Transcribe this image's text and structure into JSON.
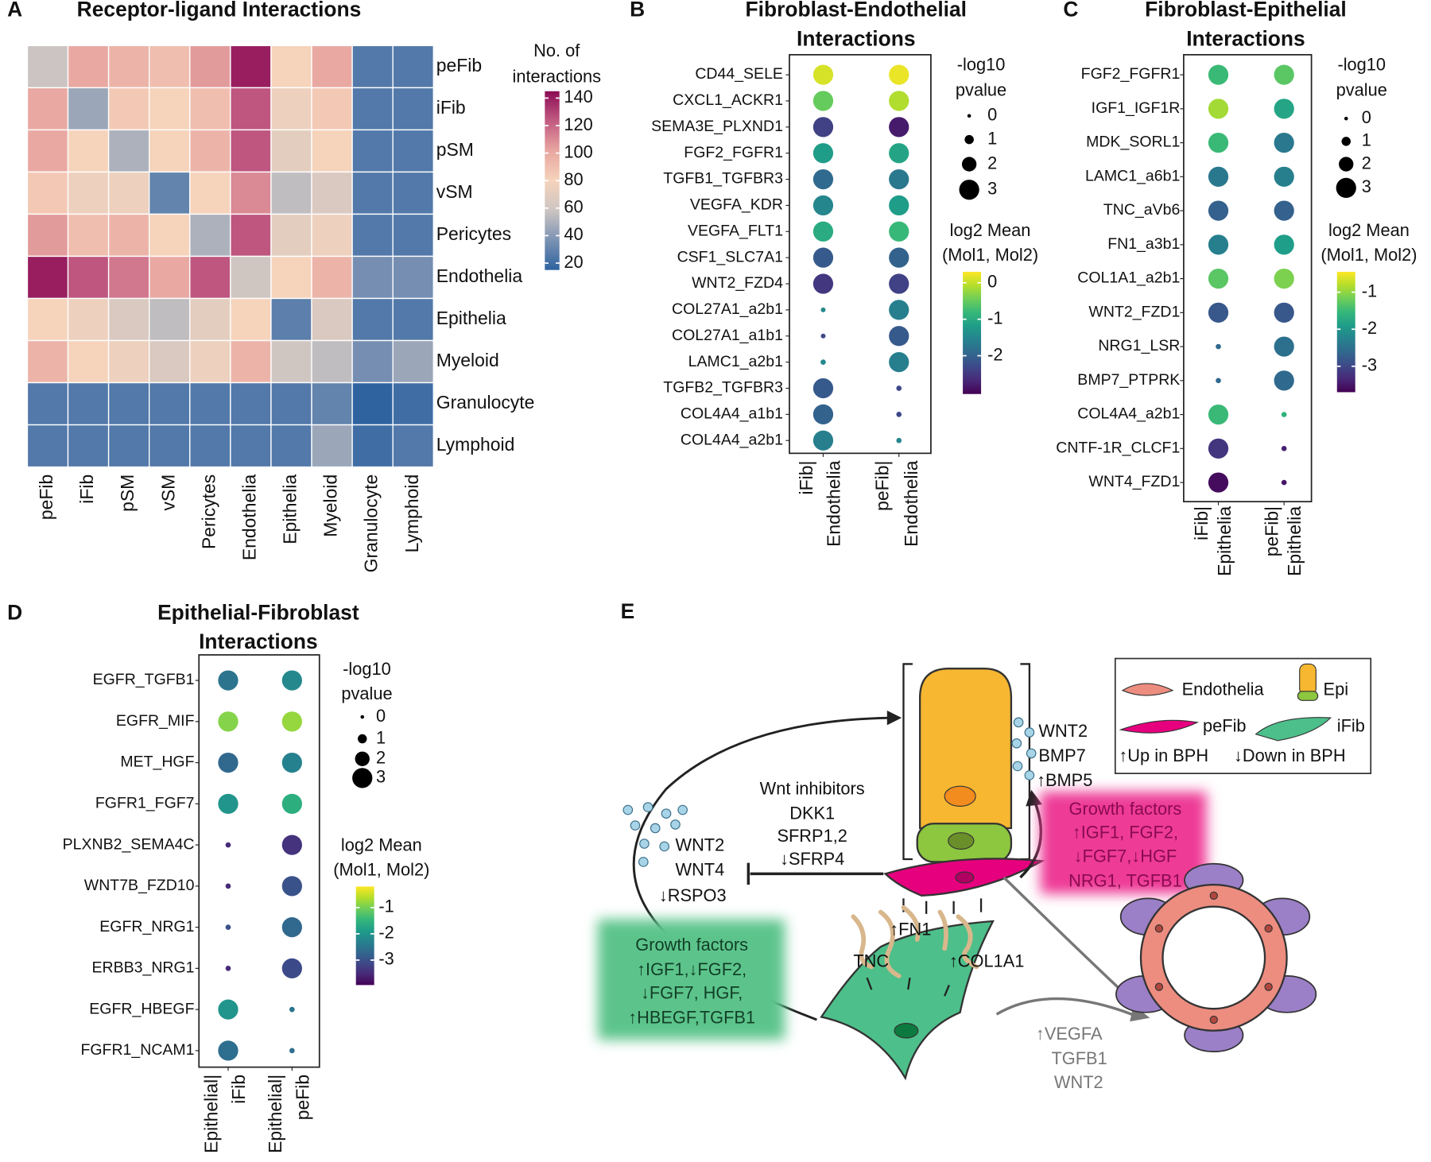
{
  "chart_data": [
    {
      "type": "heatmap",
      "panel_label": "A",
      "title": "Receptor-ligand Interactions",
      "rows": [
        "peFib",
        "iFib",
        "pSM",
        "vSM",
        "Pericytes",
        "Endothelia",
        "Epithelia",
        "Myeloid",
        "Granulocyte",
        "Lymphoid"
      ],
      "columns": [
        "peFib",
        "iFib",
        "pSM",
        "vSM",
        "Pericytes",
        "Endothelia",
        "Epithelia",
        "Myeloid",
        "Granulocyte",
        "Lymphoid"
      ],
      "values": [
        [
          58,
          100,
          95,
          90,
          105,
          140,
          80,
          100,
          25,
          25
        ],
        [
          100,
          45,
          85,
          80,
          90,
          125,
          75,
          85,
          25,
          25
        ],
        [
          100,
          80,
          50,
          80,
          95,
          125,
          70,
          80,
          25,
          25
        ],
        [
          85,
          75,
          75,
          30,
          80,
          110,
          55,
          65,
          25,
          25
        ],
        [
          105,
          90,
          95,
          80,
          50,
          125,
          70,
          75,
          25,
          25
        ],
        [
          140,
          125,
          115,
          100,
          125,
          60,
          80,
          95,
          35,
          35
        ],
        [
          80,
          75,
          65,
          55,
          70,
          80,
          28,
          65,
          25,
          25
        ],
        [
          95,
          80,
          75,
          65,
          75,
          95,
          60,
          55,
          35,
          45
        ],
        [
          25,
          25,
          25,
          25,
          25,
          25,
          25,
          30,
          15,
          20
        ],
        [
          25,
          25,
          25,
          25,
          25,
          25,
          25,
          45,
          20,
          25
        ]
      ],
      "colorbar_title": [
        "No. of",
        "interactions"
      ],
      "zlim": [
        15,
        145
      ],
      "zticks": [
        20,
        40,
        60,
        80,
        100,
        120,
        140
      ],
      "colorscale": [
        "#2e63a0",
        "#7b92b3",
        "#cdc5c2",
        "#f6d3bb",
        "#e8a6a0",
        "#c25c82",
        "#8c0c55"
      ]
    },
    {
      "type": "dotplot",
      "panel_label": "B",
      "title": [
        "Fibroblast-Endothelial",
        "Interactions"
      ],
      "categories": [
        "CD44_SELE",
        "CXCL1_ACKR1",
        "SEMA3E_PLXND1",
        "FGF2_FGFR1",
        "TGFB1_TGFBR3",
        "VEGFA_KDR",
        "VEGFA_FLT1",
        "CSF1_SLC7A1",
        "WNT2_FZD4",
        "COL27A1_a2b1",
        "COL27A1_a1b1",
        "LAMC1_a2b1",
        "TGFB2_TGFBR3",
        "COL4A4_a1b1",
        "COL4A4_a2b1"
      ],
      "x_labels": [
        [
          "iFib|",
          "Endothelia"
        ],
        [
          "peFib|",
          "Endothelia"
        ]
      ],
      "series": [
        {
          "values": [
            0.1,
            -0.5,
            -2.4,
            -1.2,
            -1.9,
            -1.5,
            -1.0,
            -2.1,
            -2.5,
            -1.5,
            -2.3,
            -1.5,
            -2.1,
            -2.0,
            -1.6
          ],
          "sizes": [
            3,
            3,
            3,
            3,
            3,
            3,
            3,
            3,
            3,
            0.2,
            0.2,
            0.3,
            3,
            3,
            3
          ]
        },
        {
          "values": [
            0.2,
            -0.1,
            -2.8,
            -1.1,
            -1.7,
            -1.2,
            -0.8,
            -2.0,
            -2.4,
            -1.6,
            -2.1,
            -1.6,
            -2.3,
            -2.3,
            -1.5
          ],
          "sizes": [
            3,
            3,
            3,
            3,
            3,
            3,
            3,
            3,
            3,
            3,
            3,
            3,
            0.3,
            0.3,
            0.3
          ]
        }
      ],
      "size_legend_title": [
        "-log10",
        "pvalue"
      ],
      "size_ticks": [
        0,
        1,
        2,
        3
      ],
      "color_legend_title": [
        "log2 Mean",
        "(Mol1, Mol2)"
      ],
      "clim": [
        -3.05,
        0.3
      ],
      "cticks": [
        0,
        -1,
        -2
      ],
      "colorscale": [
        "#440154",
        "#482878",
        "#3e4989",
        "#31688e",
        "#26828e",
        "#1f9e89",
        "#35b779",
        "#6ece58",
        "#b5de2b",
        "#fde725"
      ]
    },
    {
      "type": "dotplot",
      "panel_label": "C",
      "title": [
        "Fibroblast-Epithelial",
        "Interactions"
      ],
      "categories": [
        "FGF2_FGFR1",
        "IGF1_IGF1R",
        "MDK_SORL1",
        "LAMC1_a6b1",
        "TNC_aVb6",
        "FN1_a3b1",
        "COL1A1_a2b1",
        "WNT2_FZD1",
        "NRG1_LSR",
        "BMP7_PTPRK",
        "COL4A4_a2b1",
        "CNTF-1R_CLCF1",
        "WNT4_FZD1"
      ],
      "x_labels": [
        [
          "iFib|",
          "Epithelia"
        ],
        [
          "peFib|",
          "Epithelia"
        ]
      ],
      "series": [
        {
          "values": [
            -1.5,
            -0.9,
            -1.5,
            -2.4,
            -2.7,
            -2.3,
            -1.3,
            -2.8,
            -2.6,
            -2.6,
            -1.5,
            -3.2,
            -3.6
          ],
          "sizes": [
            3,
            3,
            3,
            3,
            3,
            3,
            3,
            3,
            0.3,
            0.3,
            3,
            3,
            3
          ]
        },
        {
          "values": [
            -1.3,
            -1.8,
            -2.4,
            -2.3,
            -2.7,
            -1.9,
            -1.1,
            -2.8,
            -2.5,
            -2.6,
            -1.6,
            -3.4,
            -3.5
          ],
          "sizes": [
            3,
            3,
            3,
            3,
            3,
            3,
            3,
            3,
            3,
            3,
            0.3,
            0.3,
            0.3
          ]
        }
      ],
      "size_legend_title": [
        "-log10",
        "pvalue"
      ],
      "size_ticks": [
        0,
        1,
        2,
        3
      ],
      "color_legend_title": [
        "log2 Mean",
        "(Mol1, Mol2)"
      ],
      "clim": [
        -3.7,
        -0.45
      ],
      "cticks": [
        -1,
        -2,
        -3
      ],
      "colorscale": [
        "#440154",
        "#482878",
        "#3e4989",
        "#31688e",
        "#26828e",
        "#1f9e89",
        "#35b779",
        "#6ece58",
        "#b5de2b",
        "#fde725"
      ]
    },
    {
      "type": "dotplot",
      "panel_label": "D",
      "title": [
        "Epithelial-Fibroblast",
        "Interactions"
      ],
      "categories": [
        "EGFR_TGFB1",
        "EGFR_MIF",
        "MET_HGF",
        "FGFR1_FGF7",
        "PLXNB2_SEMA4C",
        "WNT7B_FZD10",
        "EGFR_NRG1",
        "ERBB3_NRG1",
        "EGFR_HBEGF",
        "FGFR1_NCAM1"
      ],
      "x_labels": [
        [
          "Epithelial|",
          "iFib"
        ],
        [
          "Epithelial|",
          "peFib"
        ]
      ],
      "series": [
        {
          "values": [
            -2.5,
            -0.9,
            -2.7,
            -2.0,
            -3.5,
            -3.5,
            -3.0,
            -3.5,
            -2.0,
            -2.6
          ],
          "sizes": [
            3,
            3,
            3,
            3,
            0.3,
            0.3,
            0.3,
            0.3,
            3,
            3
          ]
        },
        {
          "values": [
            -2.2,
            -0.8,
            -2.3,
            -1.6,
            -3.4,
            -3.0,
            -2.7,
            -3.1,
            -2.5,
            -2.6
          ],
          "sizes": [
            3,
            3,
            3,
            3,
            3,
            3,
            3,
            3,
            0.3,
            0.3
          ]
        }
      ],
      "size_legend_title": [
        "-log10",
        "pvalue"
      ],
      "size_ticks": [
        0,
        1,
        2,
        3
      ],
      "color_legend_title": [
        "log2 Mean",
        "(Mol1, Mol2)"
      ],
      "clim": [
        -3.95,
        -0.2
      ],
      "cticks": [
        -1,
        -2,
        -3
      ],
      "colorscale": [
        "#440154",
        "#482878",
        "#3e4989",
        "#31688e",
        "#26828e",
        "#1f9e89",
        "#35b779",
        "#6ece58",
        "#b5de2b",
        "#fde725"
      ]
    }
  ],
  "diagram": {
    "panel_label": "E",
    "legend": {
      "endothelia": "Endothelia",
      "epi": "Epi",
      "pefib": "peFib",
      "ifib": "iFib",
      "up": "↑Up in BPH",
      "down": "↓Down in BPH"
    },
    "epi_signals": [
      "WNT2",
      "BMP7",
      "↑BMP5"
    ],
    "wnt_inhibitors": [
      "Wnt inhibitors",
      "DKK1",
      "SFRP1,2",
      "↓SFRP4"
    ],
    "ifib_wnts": [
      "WNT2",
      "WNT4",
      "↓RSPO3"
    ],
    "pefib_growth_factors": [
      "Growth factors",
      "↑IGF1,  FGF2,",
      "↓FGF7,↓HGF",
      "NRG1, TGFB1"
    ],
    "ifib_growth_factors": [
      "Growth factors",
      "↑IGF1,↓FGF2,",
      "↓FGF7,  HGF,",
      "↑HBEGF,TGFB1"
    ],
    "ecm": [
      "↑FN1",
      "TNC",
      "↑COL1A1"
    ],
    "endothelial_signals": [
      "↑VEGFA",
      "TGFB1",
      "WNT2"
    ]
  }
}
